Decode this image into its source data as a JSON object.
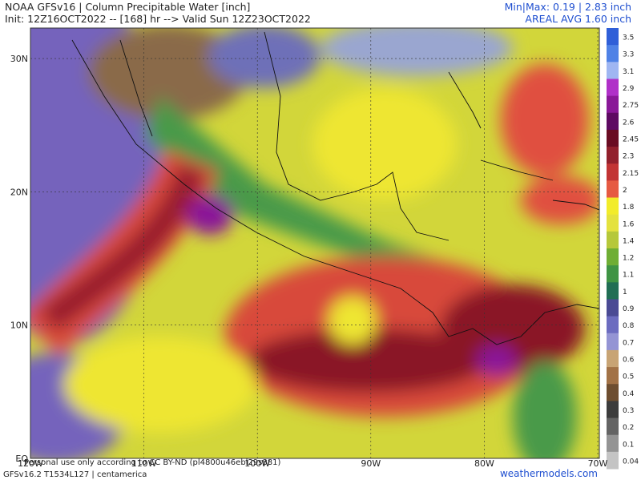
{
  "header": {
    "title": "NOAA GFSv16 | Column Precipitable Water [inch]",
    "init": "Init: 12Z16OCT2022 -- [168] hr --> Valid Sun 12Z23OCT2022",
    "minmax": "Min|Max: 0.19 | 2.83 inch",
    "areal": "AREAL AVG 1.60 inch"
  },
  "map": {
    "lat_labels": [
      "30N",
      "20N",
      "10N",
      "EQ"
    ],
    "lon_labels": [
      "120W",
      "110W",
      "100W",
      "90W",
      "80W",
      "70W"
    ]
  },
  "colorbar": [
    {
      "label": "3.5",
      "color": "#2f5fd8"
    },
    {
      "label": "3.3",
      "color": "#4f82e6"
    },
    {
      "label": "3.1",
      "color": "#9fb6f2"
    },
    {
      "label": "2.9",
      "color": "#b030c8"
    },
    {
      "label": "2.75",
      "color": "#8a1898"
    },
    {
      "label": "2.6",
      "color": "#5e0a62"
    },
    {
      "label": "2.45",
      "color": "#6a0c22"
    },
    {
      "label": "2.3",
      "color": "#92202c"
    },
    {
      "label": "2.15",
      "color": "#c23434"
    },
    {
      "label": "2",
      "color": "#e65a42"
    },
    {
      "label": "1.8",
      "color": "#f2ec2a"
    },
    {
      "label": "1.6",
      "color": "#e4e23e"
    },
    {
      "label": "1.4",
      "color": "#b6c83a"
    },
    {
      "label": "1.2",
      "color": "#6fae34"
    },
    {
      "label": "1.1",
      "color": "#3f9444"
    },
    {
      "label": "1",
      "color": "#216e54"
    },
    {
      "label": "0.9",
      "color": "#4a4a94"
    },
    {
      "label": "0.8",
      "color": "#6c6cc0"
    },
    {
      "label": "0.7",
      "color": "#9494d4"
    },
    {
      "label": "0.6",
      "color": "#c8a474"
    },
    {
      "label": "0.5",
      "color": "#a27246"
    },
    {
      "label": "0.4",
      "color": "#6e4e30"
    },
    {
      "label": "0.3",
      "color": "#3c3c3c"
    },
    {
      "label": "0.2",
      "color": "#646464"
    },
    {
      "label": "0.1",
      "color": "#949494"
    },
    {
      "label": "0.04",
      "color": "#c4c4c4"
    }
  ],
  "footer": {
    "license": "Personal use only according to CC BY-ND (pl4800u46ebl29s881)",
    "model": "GFSv16.2 T1534L127 | centamerica",
    "site": "weathermodels.com"
  }
}
